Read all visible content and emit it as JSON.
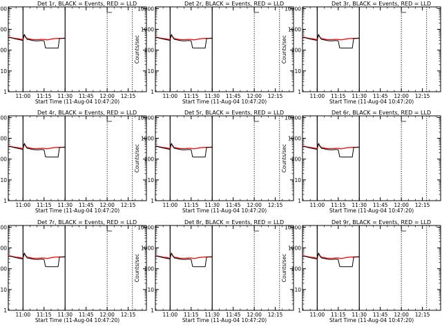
{
  "colors": {
    "events": "#000000",
    "lld": "#ff0000",
    "background": "#ffffff"
  },
  "shared": {
    "title_suffix": "BLACK = Events, RED = LLD",
    "xlabel": "Start Time (11-Aug-04 10:47:20)",
    "ylabel": "Counts/sec",
    "ytick_labels": [
      "1",
      "10",
      "100",
      "1000",
      "10000"
    ],
    "xtick_labels": [
      "11:00",
      "11:15",
      "11:30",
      "11:45",
      "12:00",
      "12:15"
    ],
    "x_ticks_min": [
      0,
      15,
      30,
      45,
      60,
      75
    ],
    "yscale": "log",
    "ylim": [
      1,
      12000
    ],
    "xlim_min_from_1100": [
      -10.5,
      88
    ]
  },
  "chart_data": [
    {
      "type": "line",
      "title_prefix": "Det 1r",
      "vlines_solid": [
        0,
        30
      ],
      "vlines_dotted": [
        60,
        78
      ],
      "events_end": 30,
      "lld_end": 30
    },
    {
      "type": "line",
      "title_prefix": "Det 2r",
      "vlines_solid": [
        0,
        30
      ],
      "vlines_dotted": [
        60,
        78
      ],
      "events_end": 30,
      "lld_end": 30
    },
    {
      "type": "line",
      "title_prefix": "Det 3r",
      "vlines_solid": [
        0,
        30
      ],
      "vlines_dotted": [
        60,
        78
      ],
      "events_end": 30,
      "lld_end": 30
    },
    {
      "type": "line",
      "title_prefix": "Det 4r",
      "vlines_solid": [
        0,
        30
      ],
      "vlines_dotted": [
        60,
        78
      ],
      "events_end": 30,
      "lld_end": 30
    },
    {
      "type": "line",
      "title_prefix": "Det 5r",
      "vlines_solid": [
        0,
        30
      ],
      "vlines_dotted": [
        60,
        78
      ],
      "events_end": 30,
      "lld_end": 30
    },
    {
      "type": "line",
      "title_prefix": "Det 6r",
      "vlines_solid": [
        0,
        30
      ],
      "vlines_dotted": [
        60,
        78
      ],
      "events_end": 30,
      "lld_end": 30
    },
    {
      "type": "line",
      "title_prefix": "Det 7r",
      "vlines_solid": [
        0,
        30
      ],
      "vlines_dotted": [
        60,
        78
      ],
      "events_end": 30,
      "lld_end": 30
    },
    {
      "type": "line",
      "title_prefix": "Det 8r",
      "vlines_solid": [
        0,
        30
      ],
      "vlines_dotted": [
        60,
        78
      ],
      "events_end": 30,
      "lld_end": 30
    },
    {
      "type": "line",
      "title_prefix": "Det 9r",
      "vlines_solid": [
        0,
        30
      ],
      "vlines_dotted": [
        60,
        78
      ],
      "events_end": 30,
      "lld_end": 30
    }
  ],
  "series_shape": {
    "x_min": [
      -10.5,
      -9,
      -7,
      -5,
      -3,
      -1,
      0,
      0.5,
      1,
      2,
      3,
      5,
      7,
      9,
      11,
      13,
      15,
      16,
      17,
      18,
      19,
      20,
      21,
      22,
      23,
      24,
      25,
      26,
      27,
      28,
      30
    ],
    "events": [
      380,
      400,
      370,
      340,
      320,
      300,
      290,
      470,
      560,
      400,
      330,
      310,
      290,
      280,
      280,
      290,
      280,
      130,
      125,
      125,
      125,
      125,
      125,
      125,
      125,
      125,
      125,
      360,
      370,
      370,
      370
    ],
    "lld": [
      430,
      410,
      380,
      360,
      350,
      330,
      320,
      440,
      520,
      420,
      360,
      340,
      320,
      320,
      320,
      330,
      330,
      320,
      310,
      320,
      330,
      340,
      350,
      355,
      360,
      360,
      365,
      365,
      370,
      370,
      380
    ]
  }
}
